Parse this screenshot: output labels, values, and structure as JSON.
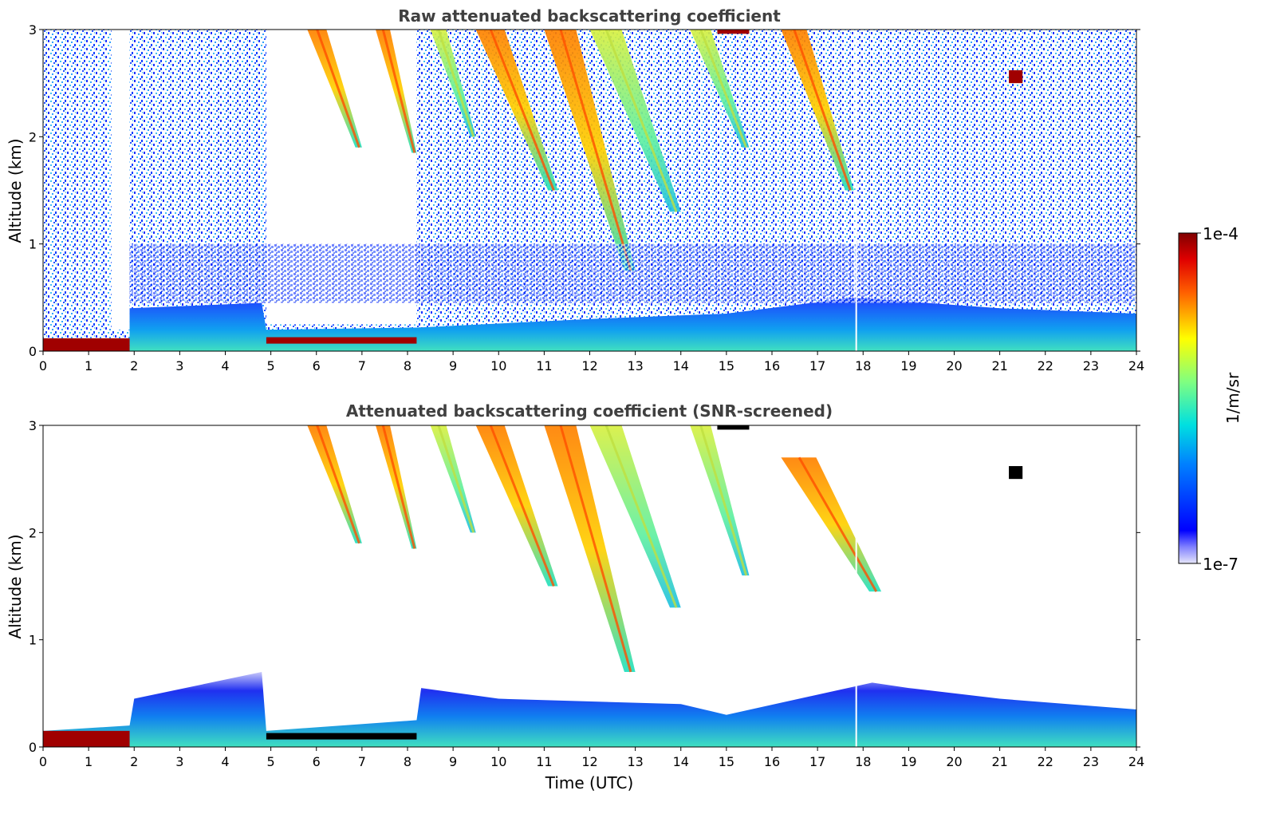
{
  "chart_data": [
    {
      "type": "heatmap",
      "title": "Raw attenuated backscattering coefficient",
      "xlabel": "",
      "ylabel": "Altitude (km)",
      "xlim": [
        0,
        24
      ],
      "ylim": [
        0,
        3
      ],
      "xticks": [
        "0",
        "1",
        "2",
        "3",
        "4",
        "5",
        "6",
        "7",
        "8",
        "9",
        "10",
        "11",
        "12",
        "13",
        "14",
        "15",
        "16",
        "17",
        "18",
        "19",
        "20",
        "21",
        "22",
        "23",
        "24"
      ],
      "yticks": [
        "0",
        "1",
        "2",
        "3"
      ],
      "regions": [
        {
          "feature": "noise",
          "x": [
            0,
            24
          ],
          "y": [
            0,
            3
          ],
          "level": "low-mid"
        },
        {
          "feature": "no-signal",
          "x": [
            1.5,
            1.9
          ],
          "y": [
            0.2,
            3
          ]
        },
        {
          "feature": "no-signal",
          "x": [
            4.9,
            8.2
          ],
          "y": [
            0.25,
            3
          ]
        },
        {
          "feature": "boundary-layer",
          "x": [
            1.9,
            24
          ],
          "y": [
            0,
            0.5
          ]
        },
        {
          "feature": "fog/saturation",
          "x": [
            0,
            1.9
          ],
          "y": [
            0,
            0.12
          ],
          "level": "max"
        },
        {
          "feature": "saturation-layer",
          "x": [
            4.9,
            8.2
          ],
          "y": [
            0.07,
            0.13
          ],
          "level": "max"
        },
        {
          "feature": "fall-streak",
          "x": [
            5.8,
            7.0
          ],
          "y": [
            1.9,
            3.0
          ],
          "level": "high"
        },
        {
          "feature": "fall-streak",
          "x": [
            7.3,
            8.2
          ],
          "y": [
            1.85,
            3.0
          ],
          "level": "high"
        },
        {
          "feature": "fall-streak",
          "x": [
            8.5,
            9.5
          ],
          "y": [
            2.0,
            3.0
          ],
          "level": "mid"
        },
        {
          "feature": "fall-streak",
          "x": [
            9.5,
            11.3
          ],
          "y": [
            1.5,
            3.0
          ],
          "level": "high"
        },
        {
          "feature": "fall-streak",
          "x": [
            11.0,
            13.0
          ],
          "y": [
            0.75,
            3.0
          ],
          "level": "high"
        },
        {
          "feature": "fall-streak",
          "x": [
            12.0,
            14.0
          ],
          "y": [
            1.3,
            3.0
          ],
          "level": "mid"
        },
        {
          "feature": "fall-streak",
          "x": [
            14.2,
            15.5
          ],
          "y": [
            1.9,
            3.0
          ],
          "level": "mid"
        },
        {
          "feature": "fall-streak",
          "x": [
            16.2,
            17.8
          ],
          "y": [
            1.5,
            3.0
          ],
          "level": "high"
        },
        {
          "feature": "cloud-top",
          "x": [
            14.8,
            15.5
          ],
          "y": [
            2.96,
            3.0
          ],
          "level": "max"
        },
        {
          "feature": "isolated-target",
          "x": [
            21.2,
            21.5
          ],
          "y": [
            2.5,
            2.62
          ],
          "level": "max"
        }
      ]
    },
    {
      "type": "heatmap",
      "title": "Attenuated backscattering coefficient (SNR-screened)",
      "xlabel": "Time (UTC)",
      "ylabel": "Altitude (km)",
      "xlim": [
        0,
        24
      ],
      "ylim": [
        0,
        3
      ],
      "xticks": [
        "0",
        "1",
        "2",
        "3",
        "4",
        "5",
        "6",
        "7",
        "8",
        "9",
        "10",
        "11",
        "12",
        "13",
        "14",
        "15",
        "16",
        "17",
        "18",
        "19",
        "20",
        "21",
        "22",
        "23",
        "24"
      ],
      "yticks": [
        "0",
        "1",
        "2",
        "3"
      ],
      "regions": [
        {
          "feature": "boundary-layer",
          "x": [
            0,
            24
          ],
          "y": [
            0,
            0.7
          ]
        },
        {
          "feature": "fog/saturation",
          "x": [
            0,
            1.9
          ],
          "y": [
            0,
            0.15
          ],
          "level": "max"
        },
        {
          "feature": "saturation-layer",
          "x": [
            4.9,
            8.2
          ],
          "y": [
            0.07,
            0.13
          ],
          "level": "black"
        },
        {
          "feature": "fall-streak",
          "x": [
            5.8,
            7.0
          ],
          "y": [
            1.9,
            3.0
          ],
          "level": "high"
        },
        {
          "feature": "fall-streak",
          "x": [
            7.3,
            8.2
          ],
          "y": [
            1.85,
            3.0
          ],
          "level": "high"
        },
        {
          "feature": "fall-streak",
          "x": [
            8.5,
            9.5
          ],
          "y": [
            2.0,
            3.0
          ],
          "level": "mid"
        },
        {
          "feature": "fall-streak",
          "x": [
            9.5,
            11.3
          ],
          "y": [
            1.5,
            3.0
          ],
          "level": "high"
        },
        {
          "feature": "fall-streak",
          "x": [
            11.0,
            13.0
          ],
          "y": [
            0.7,
            3.0
          ],
          "level": "high"
        },
        {
          "feature": "fall-streak",
          "x": [
            12.0,
            14.0
          ],
          "y": [
            1.3,
            3.0
          ],
          "level": "mid"
        },
        {
          "feature": "fall-streak",
          "x": [
            14.2,
            15.5
          ],
          "y": [
            1.6,
            3.0
          ],
          "level": "mid"
        },
        {
          "feature": "fall-streak",
          "x": [
            16.2,
            18.4
          ],
          "y": [
            1.45,
            2.7
          ],
          "level": "high"
        },
        {
          "feature": "cloud-top",
          "x": [
            14.8,
            15.5
          ],
          "y": [
            2.96,
            3.0
          ],
          "level": "black"
        },
        {
          "feature": "isolated-target",
          "x": [
            21.2,
            21.5
          ],
          "y": [
            2.5,
            2.62
          ],
          "level": "black"
        }
      ]
    }
  ],
  "colorbar": {
    "label": "1/m/sr",
    "max_label": "1e-4",
    "min_label": "1e-7",
    "colormap": "jet",
    "scale": "log"
  },
  "colors": {
    "title": "#404040",
    "deep_blue": "#0000d0",
    "saturation": "#a00000",
    "screened_black": "#000000"
  }
}
